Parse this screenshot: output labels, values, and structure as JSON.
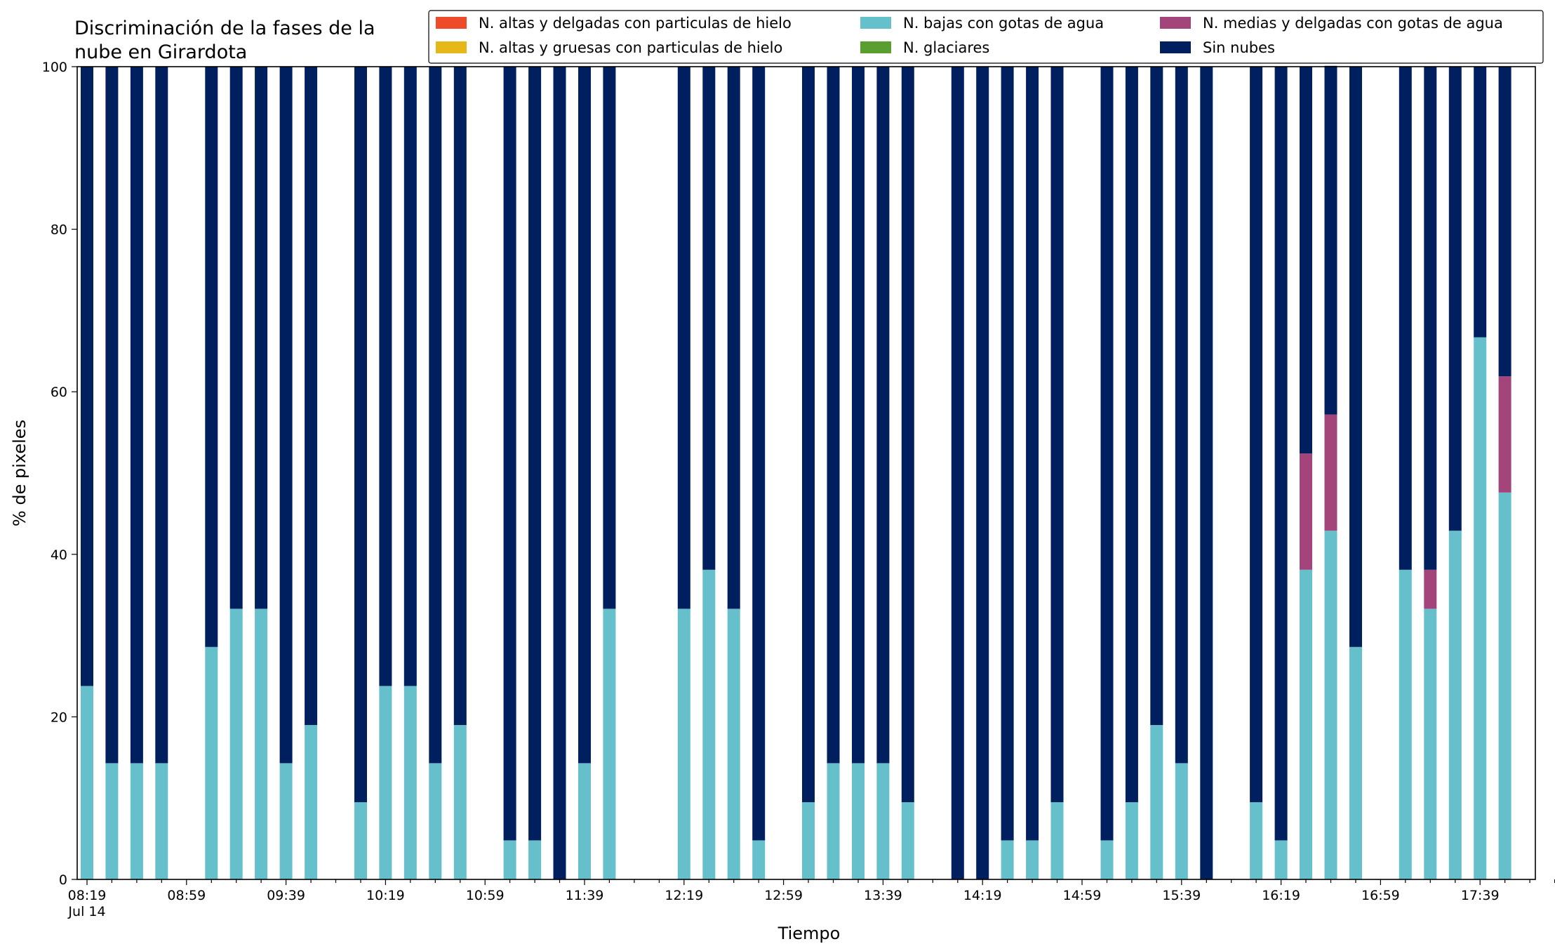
{
  "chart_data": {
    "type": "bar",
    "stacked": true,
    "title": "Discriminación de la fases de la nube en Girardota",
    "title_lines": [
      "Discriminación de la fases de la",
      "nube en Girardota"
    ],
    "xlabel": "Tiempo",
    "ylabel": "% de pixeles",
    "ylim": [
      0,
      100
    ],
    "yticks": [
      0,
      20,
      40,
      60,
      80,
      100
    ],
    "x_date_label": "Jul 14",
    "time_range": [
      "08:19",
      "18:09"
    ],
    "x_tick_labels": [
      "08:19",
      "08:59",
      "09:39",
      "10:19",
      "10:59",
      "11:39",
      "12:19",
      "12:59",
      "13:39",
      "14:19",
      "14:59",
      "15:39",
      "16:19",
      "16:59",
      "17:39"
    ],
    "grid": false,
    "legend_position": "top-right",
    "bar_times": [
      "08:19",
      "08:29",
      "08:39",
      "08:49",
      "09:09",
      "09:19",
      "09:29",
      "09:39",
      "09:49",
      "10:09",
      "10:19",
      "10:29",
      "10:39",
      "10:49",
      "11:09",
      "11:19",
      "11:29",
      "11:39",
      "11:49",
      "12:19",
      "12:29",
      "12:39",
      "12:49",
      "13:09",
      "13:19",
      "13:29",
      "13:39",
      "13:49",
      "14:09",
      "14:19",
      "14:29",
      "14:39",
      "14:49",
      "15:09",
      "15:19",
      "15:29",
      "15:39",
      "15:49",
      "16:09",
      "16:19",
      "16:29",
      "16:39",
      "16:49",
      "17:09",
      "17:19",
      "17:29",
      "17:39",
      "17:49"
    ],
    "series": [
      {
        "name": "N. altas y delgadas con particulas de hielo",
        "color": "#ee4b2b",
        "values": [
          0,
          0,
          0,
          0,
          0,
          0,
          0,
          0,
          0,
          0,
          0,
          0,
          0,
          0,
          0,
          0,
          0,
          0,
          0,
          0,
          0,
          0,
          0,
          0,
          0,
          0,
          0,
          0,
          0,
          0,
          0,
          0,
          0,
          0,
          0,
          0,
          0,
          0,
          0,
          0,
          0,
          0,
          0,
          0,
          0,
          0,
          0,
          0
        ]
      },
      {
        "name": "N. altas y gruesas con particulas de hielo",
        "color": "#e6b817",
        "values": [
          0,
          0,
          0,
          0,
          0,
          0,
          0,
          0,
          0,
          0,
          0,
          0,
          0,
          0,
          0,
          0,
          0,
          0,
          0,
          0,
          0,
          0,
          0,
          0,
          0,
          0,
          0,
          0,
          0,
          0,
          0,
          0,
          0,
          0,
          0,
          0,
          0,
          0,
          0,
          0,
          0,
          0,
          0,
          0,
          0,
          0,
          0,
          0
        ]
      },
      {
        "name": "N. bajas con gotas de agua",
        "color": "#66c0cb",
        "values": [
          23.8,
          14.3,
          14.3,
          14.3,
          28.6,
          33.3,
          33.3,
          14.3,
          19.0,
          9.5,
          23.8,
          23.8,
          14.3,
          19.0,
          4.8,
          4.8,
          0,
          14.3,
          33.3,
          33.3,
          38.1,
          33.3,
          4.8,
          9.5,
          14.3,
          14.3,
          14.3,
          9.5,
          0,
          0,
          4.8,
          4.8,
          9.5,
          4.8,
          9.5,
          19.0,
          14.3,
          0,
          9.5,
          4.8,
          38.1,
          42.9,
          28.6,
          38.1,
          33.3,
          42.9,
          66.7,
          47.6
        ]
      },
      {
        "name": "N. glaciares",
        "color": "#5a9e2f",
        "values": [
          0,
          0,
          0,
          0,
          0,
          0,
          0,
          0,
          0,
          0,
          0,
          0,
          0,
          0,
          0,
          0,
          0,
          0,
          0,
          0,
          0,
          0,
          0,
          0,
          0,
          0,
          0,
          0,
          0,
          0,
          0,
          0,
          0,
          0,
          0,
          0,
          0,
          0,
          0,
          0,
          0,
          0,
          0,
          0,
          0,
          0,
          0,
          0
        ]
      },
      {
        "name": "N. medias y delgadas con gotas de agua",
        "color": "#a3457a",
        "values": [
          0,
          0,
          0,
          0,
          0,
          0,
          0,
          0,
          0,
          0,
          0,
          0,
          0,
          0,
          0,
          0,
          0,
          0,
          0,
          0,
          0,
          0,
          0,
          0,
          0,
          0,
          0,
          0,
          0,
          0,
          0,
          0,
          0,
          0,
          0,
          0,
          0,
          0,
          0,
          0,
          14.3,
          14.3,
          0,
          0,
          4.8,
          0,
          0,
          14.3
        ]
      },
      {
        "name": "Sin nubes",
        "color": "#001f5f",
        "values": [
          76.2,
          85.7,
          85.7,
          85.7,
          71.4,
          66.7,
          66.7,
          85.7,
          81.0,
          90.5,
          76.2,
          76.2,
          85.7,
          81.0,
          95.2,
          95.2,
          100,
          85.7,
          66.7,
          66.7,
          61.9,
          66.7,
          95.2,
          90.5,
          85.7,
          85.7,
          85.7,
          90.5,
          100,
          100,
          95.2,
          95.2,
          90.5,
          95.2,
          90.5,
          81.0,
          85.7,
          100,
          90.5,
          95.2,
          47.6,
          42.9,
          71.4,
          61.9,
          61.9,
          57.1,
          33.3,
          38.1
        ]
      }
    ]
  }
}
